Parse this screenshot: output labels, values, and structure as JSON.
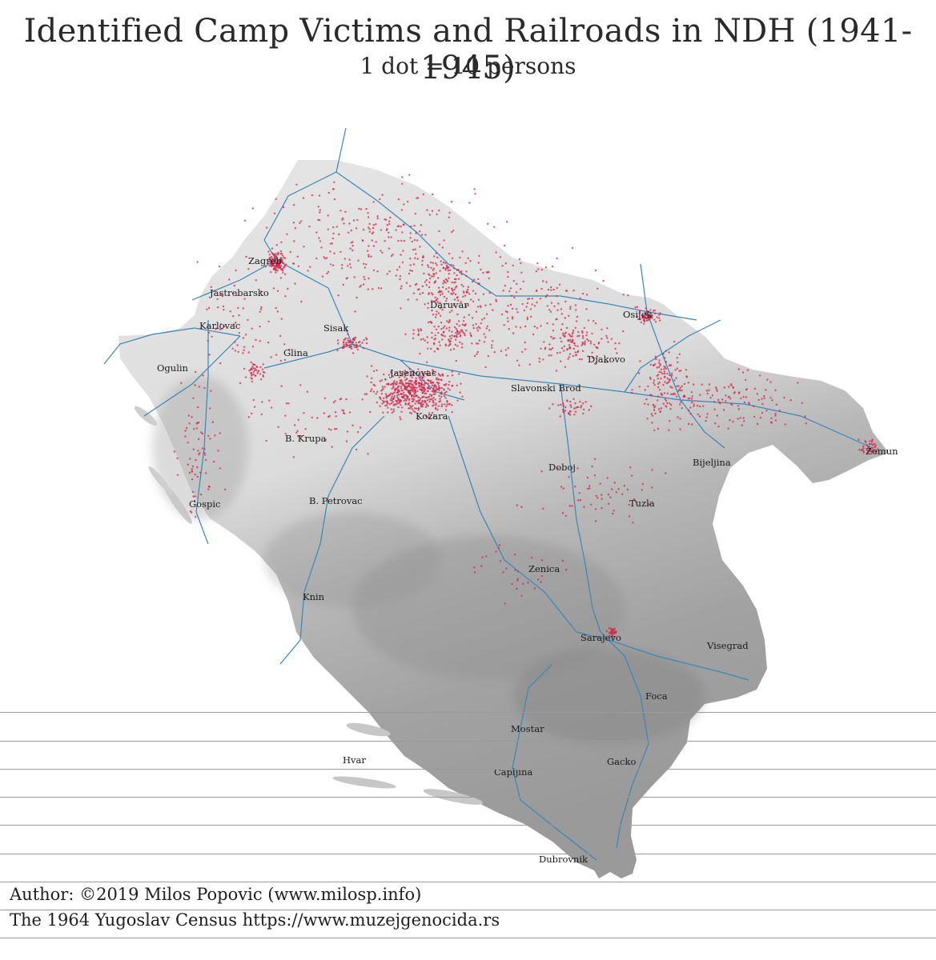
{
  "title": "Identified Camp Victims and Railroads in NDH (1941-1945)",
  "subtitle": "1 dot = 10 persons",
  "colors": {
    "victim_dot": "#d4234a",
    "railroad": "#3a87b5",
    "terrain_light": "#e3e3e3",
    "terrain_dark": "#8e8e8e"
  },
  "cities": [
    {
      "name": "Zagreb"
    },
    {
      "name": "Jastrebarsko"
    },
    {
      "name": "Karlovac"
    },
    {
      "name": "Sisak"
    },
    {
      "name": "Glina"
    },
    {
      "name": "Ogulin"
    },
    {
      "name": "Daruvar"
    },
    {
      "name": "Osijek"
    },
    {
      "name": "Djakovo"
    },
    {
      "name": "Jasenovac"
    },
    {
      "name": "Slavonski Brod"
    },
    {
      "name": "Kozara"
    },
    {
      "name": "B. Krupa"
    },
    {
      "name": "Zemun"
    },
    {
      "name": "Bijeljina"
    },
    {
      "name": "Doboj"
    },
    {
      "name": "Gospic"
    },
    {
      "name": "B. Petrovac"
    },
    {
      "name": "Tuzla"
    },
    {
      "name": "Zenica"
    },
    {
      "name": "Knin"
    },
    {
      "name": "Sarajevo"
    },
    {
      "name": "Visegrad"
    },
    {
      "name": "Foca"
    },
    {
      "name": "Mostar"
    },
    {
      "name": "Hvar"
    },
    {
      "name": "Gacko"
    },
    {
      "name": "Capljina"
    },
    {
      "name": "Dubrovnik"
    }
  ],
  "credits": {
    "author": "Author: ©2019 Milos Popovic (www.milosp.info)",
    "source": "The 1964 Yugoslav Census https://www.muzejgenocida.rs"
  }
}
